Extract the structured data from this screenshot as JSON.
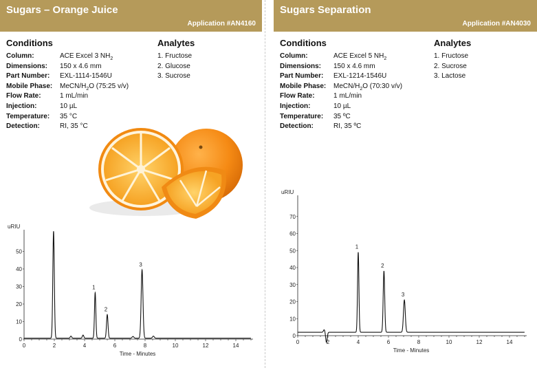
{
  "left": {
    "title": "Sugars – Orange Juice",
    "app_number": "Application #AN4160",
    "conditions_heading": "Conditions",
    "analytes_heading": "Analytes",
    "conditions": [
      {
        "label": "Column:",
        "value": "ACE Excel 3 NH",
        "sub": "2"
      },
      {
        "label": "Dimensions:",
        "value": "150 x 4.6 mm"
      },
      {
        "label": "Part Number:",
        "value": "EXL-1114-1546U"
      },
      {
        "label": "Mobile Phase:",
        "value": "MeCN/H",
        "sub": "2",
        "value_after": "O (75:25 v/v)"
      },
      {
        "label": "Flow Rate:",
        "value": "1 mL/min"
      },
      {
        "label": "Injection:",
        "value": "10 µL"
      },
      {
        "label": "Temperature:",
        "value": "35 °C"
      },
      {
        "label": "Detection:",
        "value": "RI, 35 °C"
      }
    ],
    "analytes": [
      "1. Fructose",
      "2. Glucose",
      "3. Sucrose"
    ]
  },
  "right": {
    "title": "Sugars Separation",
    "app_number": "Application #AN4030",
    "conditions_heading": "Conditions",
    "analytes_heading": "Analytes",
    "conditions": [
      {
        "label": "Column:",
        "value": "ACE Excel 5 NH",
        "sub": "2"
      },
      {
        "label": "Dimensions:",
        "value": "150 x 4.6 mm"
      },
      {
        "label": "Part Number:",
        "value": "EXL-1214-1546U"
      },
      {
        "label": "Mobile Phase:",
        "value": "MeCN/H",
        "sub": "2",
        "value_after": "O (70:30 v/v)"
      },
      {
        "label": "Flow Rate:",
        "value": "1 mL/min"
      },
      {
        "label": "Injection:",
        "value": "10 µL"
      },
      {
        "label": "Temperature:",
        "value": "35 ºC"
      },
      {
        "label": "Detection:",
        "value": "RI, 35 ºC"
      }
    ],
    "analytes": [
      "1. Fructose",
      "2. Sucrose",
      "3. Lactose"
    ]
  },
  "chart_data": [
    {
      "type": "line",
      "ylabel": "uRIU",
      "xlabel": "Time - Minutes",
      "xlim": [
        0,
        15
      ],
      "ylim": [
        0,
        60
      ],
      "xticks": [
        0,
        2,
        4,
        6,
        8,
        10,
        12,
        14
      ],
      "yticks": [
        0,
        10,
        20,
        30,
        40,
        50
      ],
      "series": [
        {
          "peaks": [
            {
              "t": 1.95,
              "h": 61,
              "w": 0.05
            },
            {
              "t": 3.1,
              "h": 1.2,
              "w": 0.05
            },
            {
              "t": 3.9,
              "h": 1.8,
              "w": 0.05
            },
            {
              "t": 4.7,
              "h": 26,
              "w": 0.045
            },
            {
              "t": 5.5,
              "h": 13.5,
              "w": 0.05
            },
            {
              "t": 7.2,
              "h": 1.0,
              "w": 0.06
            },
            {
              "t": 7.8,
              "h": 39,
              "w": 0.06
            },
            {
              "t": 8.55,
              "h": 1.2,
              "w": 0.06
            }
          ],
          "baseline": 0.5
        }
      ],
      "peak_labels": [
        {
          "label": "1",
          "t": 4.7,
          "h": 26
        },
        {
          "label": "2",
          "t": 5.5,
          "h": 13.5
        },
        {
          "label": "3",
          "t": 7.8,
          "h": 39
        }
      ]
    },
    {
      "type": "line",
      "ylabel": "uRIU",
      "xlabel": "Time - Minutes",
      "xlim": [
        0,
        15
      ],
      "ylim": [
        0,
        80
      ],
      "xticks": [
        0,
        2,
        4,
        6,
        8,
        10,
        12,
        14
      ],
      "yticks": [
        0,
        10,
        20,
        30,
        40,
        50,
        60,
        70
      ],
      "series": [
        {
          "peaks": [
            {
              "t": 4.0,
              "h": 47,
              "w": 0.045
            },
            {
              "t": 5.7,
              "h": 36,
              "w": 0.05
            },
            {
              "t": 7.05,
              "h": 19,
              "w": 0.06
            }
          ],
          "dips": [
            {
              "t": 1.9,
              "h": -6,
              "w": 0.05
            },
            {
              "t": 1.75,
              "h": 1.5,
              "w": 0.05
            }
          ],
          "baseline": 2
        }
      ],
      "peak_labels": [
        {
          "label": "1",
          "t": 4.0,
          "h": 47
        },
        {
          "label": "2",
          "t": 5.7,
          "h": 36
        },
        {
          "label": "3",
          "t": 7.05,
          "h": 19
        }
      ]
    }
  ]
}
